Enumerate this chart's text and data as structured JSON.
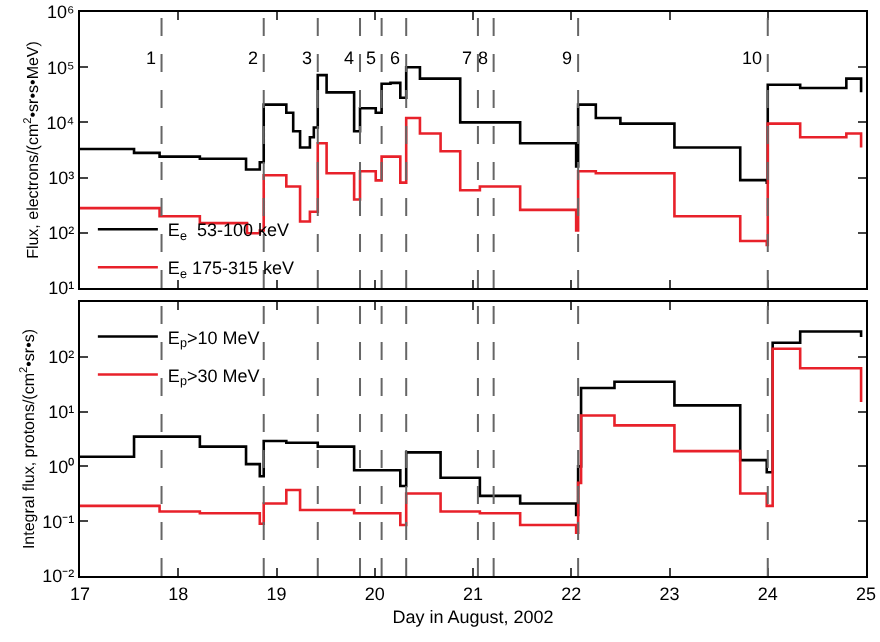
{
  "chart_data": [
    {
      "type": "step",
      "ylabel": "Flux, electrons/(cm$^{2}$•sr•s•MeV)",
      "log": "y",
      "legend": "bottom left",
      "tick_labels": "y",
      "xlim": [
        17,
        25
      ],
      "xticks": [
        17,
        18,
        19,
        20,
        21,
        22,
        23,
        24,
        25
      ],
      "ylim": [
        10,
        1000000
      ],
      "yticks": [
        {
          "value": 10,
          "label": "10¹"
        },
        {
          "value": 100,
          "label": "10²"
        },
        {
          "value": 1000,
          "label": "10³"
        },
        {
          "value": 10000,
          "label": "10⁴"
        },
        {
          "value": 100000,
          "label": "10⁵"
        },
        {
          "value": 1000000,
          "label": "10⁶"
        }
      ],
      "series": [
        {
          "name": "E$_{e}$  53-100 keV",
          "color": "#000000",
          "x": [
            17.0,
            17.55,
            17.81,
            18.22,
            18.69,
            18.83,
            18.87,
            19.1,
            19.17,
            19.24,
            19.34,
            19.38,
            19.42,
            19.51,
            19.79,
            19.85,
            20.01,
            20.07,
            20.16,
            20.26,
            20.32,
            20.46,
            20.87,
            21.07,
            21.48,
            22.05,
            22.07,
            22.25,
            22.5,
            23.05,
            23.72,
            23.99,
            24.0,
            24.33,
            24.8,
            24.95
          ],
          "values": [
            3300,
            2800,
            2400,
            2200,
            1400,
            1900,
            21000,
            15000,
            6900,
            3500,
            5400,
            8100,
            72000,
            35000,
            6900,
            18000,
            15000,
            50000,
            52000,
            28000,
            100000,
            62000,
            10000,
            10000,
            4200,
            1600,
            21000,
            12000,
            9500,
            3500,
            900,
            810,
            48000,
            42000,
            62000,
            35000
          ]
        },
        {
          "name": "E$_{e}$ 175-315 keV",
          "color": "#e8212a",
          "x": [
            17.0,
            17.81,
            18.22,
            18.7,
            18.83,
            18.87,
            19.1,
            19.24,
            19.34,
            19.42,
            19.51,
            19.79,
            19.85,
            20.01,
            20.07,
            20.26,
            20.32,
            20.46,
            20.67,
            20.87,
            21.07,
            21.48,
            22.05,
            22.07,
            22.25,
            23.05,
            23.72,
            23.99,
            24.0,
            24.33,
            24.8,
            24.95
          ],
          "values": [
            280,
            200,
            150,
            98,
            110,
            1100,
            690,
            160,
            240,
            4200,
            1200,
            400,
            1300,
            890,
            2400,
            810,
            12000,
            6300,
            3000,
            590,
            690,
            260,
            110,
            1300,
            1200,
            200,
            71,
            60,
            9500,
            5400,
            6300,
            3500
          ]
        }
      ],
      "ref_lines": [
        {
          "axis": "x",
          "value": 17.83,
          "line_style": "dashed"
        },
        {
          "axis": "x",
          "value": 18.87,
          "line_style": "dashed"
        },
        {
          "axis": "x",
          "value": 19.42,
          "line_style": "dashed"
        },
        {
          "axis": "x",
          "value": 19.85,
          "line_style": "dashed"
        },
        {
          "axis": "x",
          "value": 20.07,
          "line_style": "dashed"
        },
        {
          "axis": "x",
          "value": 20.32,
          "line_style": "dashed"
        },
        {
          "axis": "x",
          "value": 21.05,
          "line_style": "dashed"
        },
        {
          "axis": "x",
          "value": 21.21,
          "line_style": "dashed"
        },
        {
          "axis": "x",
          "value": 22.07,
          "line_style": "dashed"
        },
        {
          "axis": "x",
          "value": 24.0,
          "line_style": "dashed"
        }
      ],
      "annotations": [
        {
          "text": "1",
          "x": 17.83,
          "y": 150000
        },
        {
          "text": "2",
          "x": 18.87,
          "y": 150000
        },
        {
          "text": "3",
          "x": 19.42,
          "y": 150000
        },
        {
          "text": "4",
          "x": 19.85,
          "y": 150000
        },
        {
          "text": "5",
          "x": 20.07,
          "y": 150000
        },
        {
          "text": "6",
          "x": 20.32,
          "y": 150000
        },
        {
          "text": "7",
          "x": 21.05,
          "y": 150000
        },
        {
          "text": "8",
          "x": 21.21,
          "y": 150000
        },
        {
          "text": "9",
          "x": 22.07,
          "y": 150000
        },
        {
          "text": "10",
          "x": 24.0,
          "y": 150000
        }
      ]
    },
    {
      "type": "step",
      "xlabel": "Day in August, 2002",
      "ylabel": "Integral flux, protons/(cm$^{2}$•sr•s)",
      "log": "y",
      "legend": "top left",
      "xlim": [
        17,
        25
      ],
      "xticks": [
        17,
        18,
        19,
        20,
        21,
        22,
        23,
        24,
        25
      ],
      "ylim": [
        0.01,
        1000
      ],
      "yticks": [
        {
          "value": 0.01,
          "label": "10⁻²"
        },
        {
          "value": 0.1,
          "label": "10⁻¹"
        },
        {
          "value": 1,
          "label": "10⁰"
        },
        {
          "value": 10,
          "label": "10¹"
        },
        {
          "value": 100,
          "label": "10²"
        }
      ],
      "series": [
        {
          "name": "E$_{p}$>10 MeV",
          "color": "#000000",
          "x": [
            17.0,
            17.55,
            18.22,
            18.69,
            18.83,
            18.87,
            19.1,
            19.42,
            19.79,
            20.26,
            20.32,
            20.67,
            21.07,
            21.48,
            22.05,
            22.07,
            22.1,
            22.44,
            23.05,
            23.72,
            23.99,
            24.05,
            24.33,
            24.95
          ],
          "values": [
            1.5,
            3.5,
            2.3,
            1.1,
            0.66,
            2.9,
            2.7,
            2.3,
            0.85,
            0.44,
            1.8,
            0.62,
            0.29,
            0.21,
            0.13,
            1.0,
            27,
            35,
            13,
            1.3,
            0.78,
            180,
            290,
            230
          ]
        },
        {
          "name": "E$_{p}$>30 MeV",
          "color": "#e8212a",
          "x": [
            17.0,
            17.81,
            18.22,
            18.83,
            18.87,
            19.1,
            19.24,
            19.79,
            20.26,
            20.32,
            20.67,
            21.07,
            21.48,
            22.05,
            22.07,
            22.1,
            22.44,
            23.05,
            23.72,
            23.99,
            24.05,
            24.33,
            24.95
          ],
          "values": [
            0.19,
            0.15,
            0.14,
            0.09,
            0.21,
            0.37,
            0.16,
            0.14,
            0.085,
            0.32,
            0.15,
            0.14,
            0.085,
            0.062,
            0.5,
            8.5,
            5.6,
            1.9,
            0.32,
            0.19,
            140,
            62,
            15
          ]
        }
      ],
      "ref_lines": [
        {
          "axis": "x",
          "value": 17.83,
          "line_style": "dashed"
        },
        {
          "axis": "x",
          "value": 18.87,
          "line_style": "dashed"
        },
        {
          "axis": "x",
          "value": 19.42,
          "line_style": "dashed"
        },
        {
          "axis": "x",
          "value": 19.85,
          "line_style": "dashed"
        },
        {
          "axis": "x",
          "value": 20.07,
          "line_style": "dashed"
        },
        {
          "axis": "x",
          "value": 20.32,
          "line_style": "dashed"
        },
        {
          "axis": "x",
          "value": 21.05,
          "line_style": "dashed"
        },
        {
          "axis": "x",
          "value": 21.21,
          "line_style": "dashed"
        },
        {
          "axis": "x",
          "value": 22.07,
          "line_style": "dashed"
        },
        {
          "axis": "x",
          "value": 24.0,
          "line_style": "dashed"
        }
      ]
    }
  ]
}
